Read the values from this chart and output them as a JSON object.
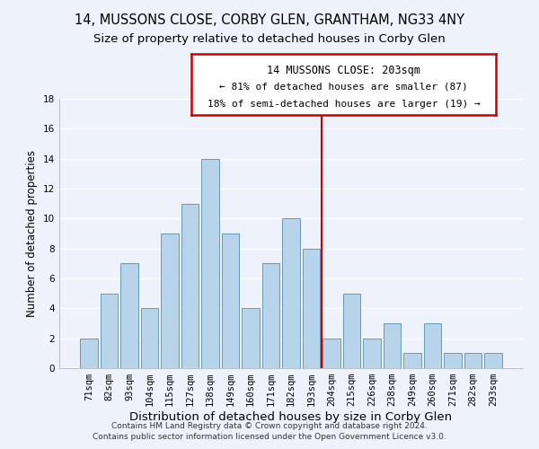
{
  "title": "14, MUSSONS CLOSE, CORBY GLEN, GRANTHAM, NG33 4NY",
  "subtitle": "Size of property relative to detached houses in Corby Glen",
  "xlabel": "Distribution of detached houses by size in Corby Glen",
  "ylabel": "Number of detached properties",
  "categories": [
    "71sqm",
    "82sqm",
    "93sqm",
    "104sqm",
    "115sqm",
    "127sqm",
    "138sqm",
    "149sqm",
    "160sqm",
    "171sqm",
    "182sqm",
    "193sqm",
    "204sqm",
    "215sqm",
    "226sqm",
    "238sqm",
    "249sqm",
    "260sqm",
    "271sqm",
    "282sqm",
    "293sqm"
  ],
  "values": [
    2,
    5,
    7,
    4,
    9,
    11,
    14,
    9,
    4,
    7,
    10,
    8,
    2,
    5,
    2,
    3,
    1,
    3,
    1,
    1,
    1
  ],
  "bar_color": "#b8d4ea",
  "bar_edge_color": "#6699bb",
  "vline_index": 12,
  "vline_color": "#cc0000",
  "ylim": [
    0,
    18
  ],
  "yticks": [
    0,
    2,
    4,
    6,
    8,
    10,
    12,
    14,
    16,
    18
  ],
  "annotation_title": "14 MUSSONS CLOSE: 203sqm",
  "annotation_line1": "← 81% of detached houses are smaller (87)",
  "annotation_line2": "18% of semi-detached houses are larger (19) →",
  "annotation_box_color": "#ffffff",
  "annotation_box_edge": "#cc0000",
  "footer1": "Contains HM Land Registry data © Crown copyright and database right 2024.",
  "footer2": "Contains public sector information licensed under the Open Government Licence v3.0.",
  "background_color": "#eef2fa",
  "grid_color": "#ffffff",
  "title_fontsize": 10.5,
  "subtitle_fontsize": 9.5,
  "xlabel_fontsize": 9.5,
  "ylabel_fontsize": 8.5,
  "tick_fontsize": 7.5,
  "footer_fontsize": 6.5,
  "ann_title_fontsize": 8.5,
  "ann_text_fontsize": 8.0
}
